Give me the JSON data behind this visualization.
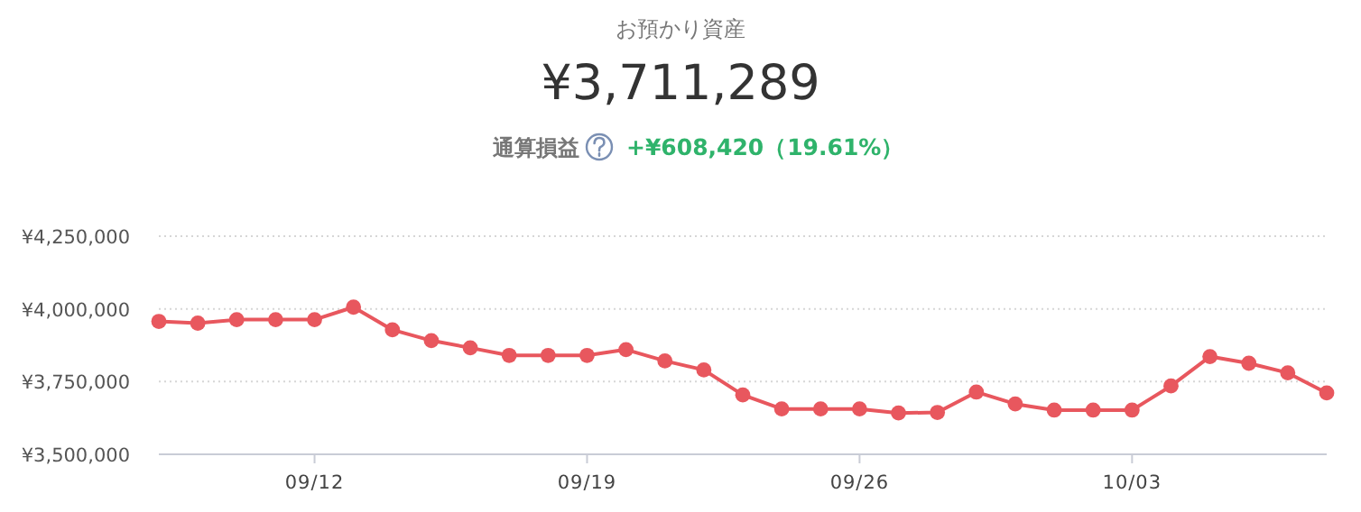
{
  "chart_data": {
    "type": "line",
    "title": "お預かり資産",
    "subtitle": "¥3,711,289",
    "annotations": [
      "通算損益",
      "+¥608,420（19.61%）"
    ],
    "x": [
      "--09-08",
      "--09-09",
      "--09-10",
      "--09-11",
      "--09-12",
      "--09-13",
      "--09-14",
      "--09-15",
      "--09-16",
      "--09-17",
      "--09-18",
      "--09-19",
      "--09-20",
      "--09-21",
      "--09-22",
      "--09-23",
      "--09-24",
      "--09-25",
      "--09-26",
      "--09-27",
      "--09-28",
      "--09-29",
      "--09-30",
      "--10-01",
      "--10-02",
      "--10-03",
      "--10-04",
      "--10-05",
      "--10-06",
      "--10-07",
      "--10-08"
    ],
    "series": [
      {
        "color": "#e8575e",
        "values": [
          3957000,
          3951000,
          3963000,
          3963000,
          3963000,
          4006000,
          3928000,
          3891000,
          3866000,
          3840000,
          3840000,
          3840000,
          3860000,
          3821000,
          3790000,
          3704000,
          3656000,
          3656000,
          3656000,
          3642000,
          3644000,
          3714000,
          3673000,
          3652000,
          3652000,
          3652000,
          3735000,
          3836000,
          3813000,
          3780000,
          3711000
        ]
      }
    ],
    "xlim": [
      "--09-08",
      "--10-08"
    ],
    "xticks": [
      {
        "value": "--09-12",
        "label": "09/12"
      },
      {
        "value": "--09-19",
        "label": "09/19"
      },
      {
        "value": "--09-26",
        "label": "09/26"
      },
      {
        "value": "--10-03",
        "label": "10/03"
      }
    ],
    "ylim": [
      3500000,
      4250000
    ],
    "yticks": [
      {
        "value": 3500000,
        "label": "¥3,500,000"
      },
      {
        "value": 3750000,
        "label": "¥3,750,000"
      },
      {
        "value": 4000000,
        "label": "¥4,000,000"
      },
      {
        "value": 4250000,
        "label": "¥4,250,000"
      }
    ],
    "grid": "y",
    "marker": "circle",
    "line_style": "solid"
  }
}
